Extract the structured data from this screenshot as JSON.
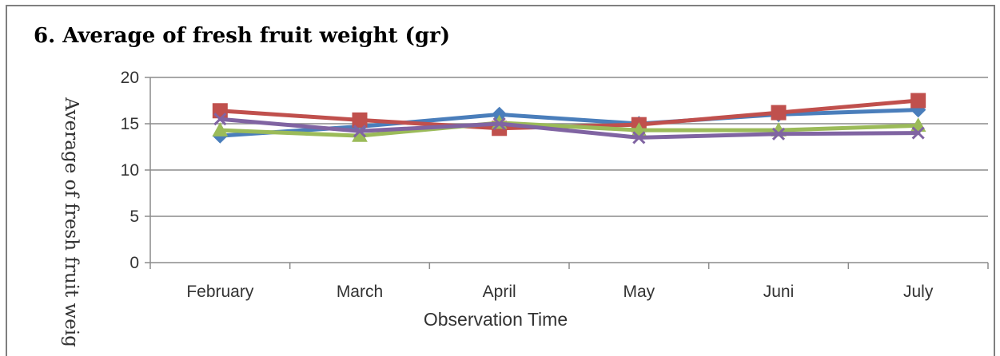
{
  "chart_data": {
    "type": "line",
    "title": "6. Average of fresh fruit weight (gr)",
    "xlabel": "Observation Time",
    "ylabel": "Average of fresh fruit weig",
    "categories": [
      "February",
      "March",
      "April",
      "May",
      "Juni",
      "July"
    ],
    "ylim": [
      0,
      20
    ],
    "yticks": [
      0,
      5,
      10,
      15,
      20
    ],
    "grid": true,
    "series": [
      {
        "values": [
          13.7,
          14.7,
          16.0,
          15.0,
          16.0,
          16.5
        ],
        "color": "#4a7ebb",
        "marker": "diamond"
      },
      {
        "values": [
          16.4,
          15.4,
          14.5,
          14.9,
          16.2,
          17.5
        ],
        "color": "#c0504d",
        "marker": "square"
      },
      {
        "values": [
          14.3,
          13.7,
          15.1,
          14.3,
          14.3,
          14.8
        ],
        "color": "#9bbb59",
        "marker": "triangle"
      },
      {
        "values": [
          15.5,
          14.2,
          15.0,
          13.5,
          13.9,
          14.0
        ],
        "color": "#8064a2",
        "marker": "x"
      }
    ]
  }
}
